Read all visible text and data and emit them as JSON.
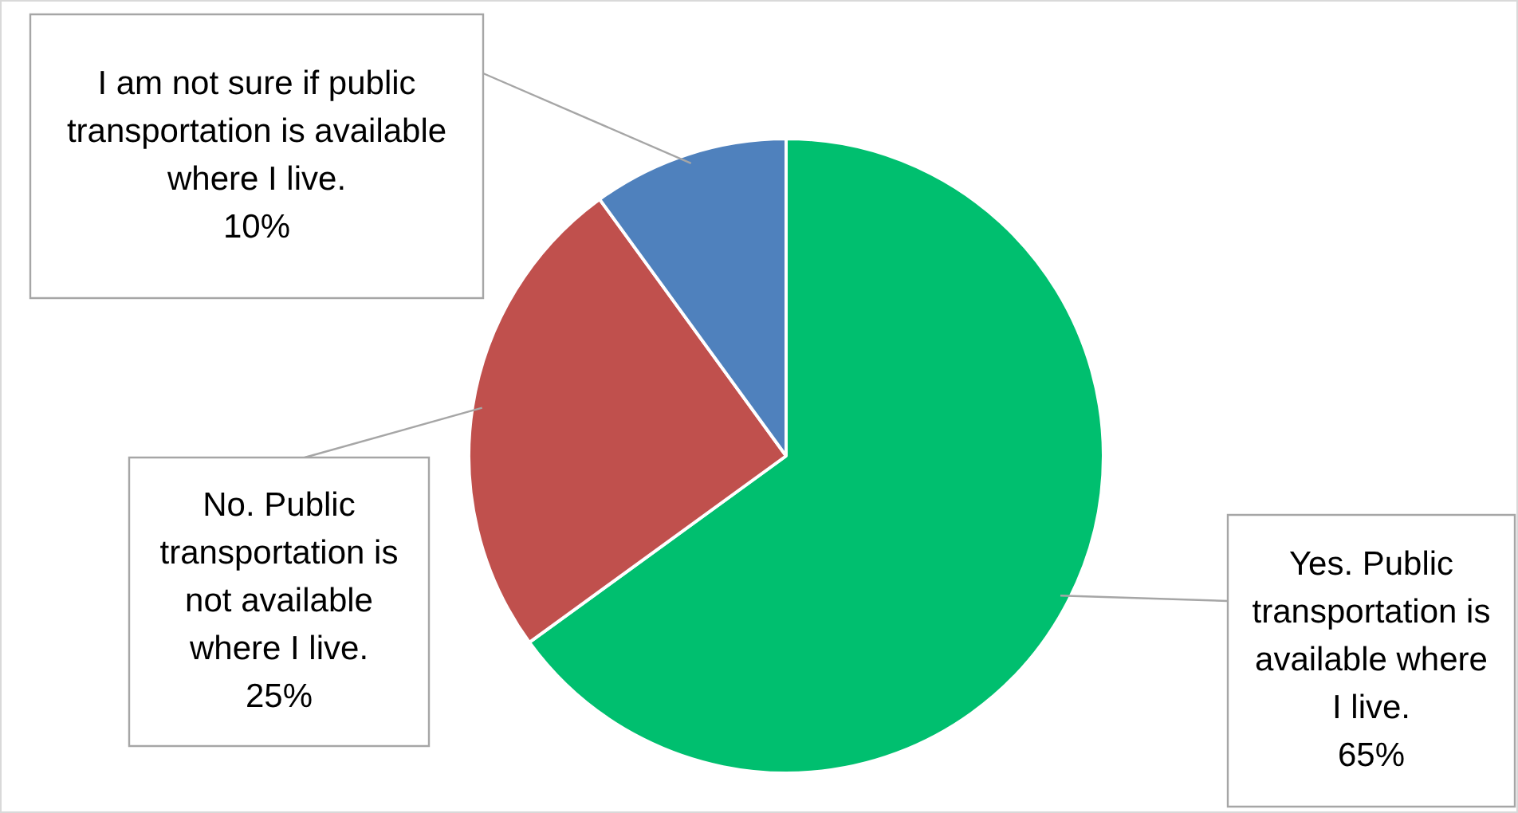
{
  "chart_data": {
    "type": "pie",
    "categories": [
      "Yes. Public transportation is available where I live.",
      "No. Public transportation is not available where I live.",
      "I am not sure if public transportation is available where I live."
    ],
    "values": [
      65,
      25,
      10
    ],
    "value_labels": [
      "65%",
      "25%",
      "10%"
    ],
    "colors": [
      "#00bf6f",
      "#c0504d",
      "#4f81bd"
    ],
    "legend": false
  }
}
